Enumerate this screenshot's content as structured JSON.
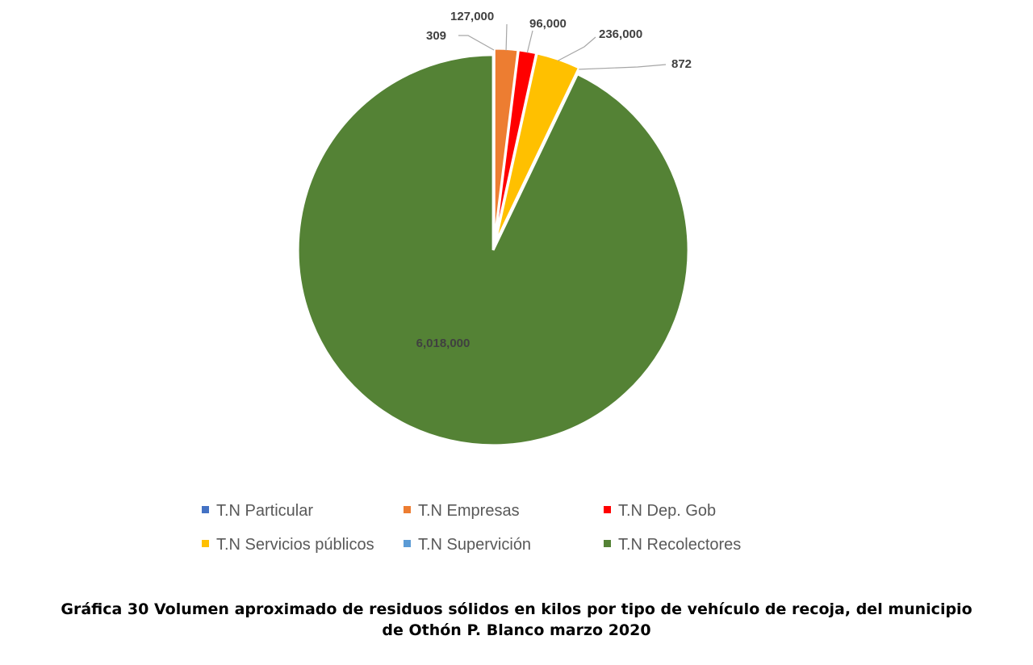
{
  "chart_data": {
    "type": "pie",
    "title": "",
    "slices": [
      {
        "label": "T.N Particular",
        "value": 309,
        "value_label": "309",
        "color": "#4472C4"
      },
      {
        "label": "T.N Empresas",
        "value": 127000,
        "value_label": "127,000",
        "color": "#ED7D31"
      },
      {
        "label": "T.N Dep. Gob",
        "value": 96000,
        "value_label": "96,000",
        "color": "#FF0000"
      },
      {
        "label": "T.N Servicios públicos",
        "value": 236000,
        "value_label": "236,000",
        "color": "#FFC000"
      },
      {
        "label": "T.N Supervición",
        "value": 872,
        "value_label": "872",
        "color": "#5B9BD5"
      },
      {
        "label": "T.N Recolectores",
        "value": 6018000,
        "value_label": "6,018,000",
        "color": "#548235"
      }
    ],
    "legend_position": "bottom"
  },
  "caption": {
    "line1": "Gráfica 30 Volumen aproximado de residuos sólidos en kilos por tipo de vehículo de recoja, del municipio",
    "line2": "de Othón P. Blanco marzo 2020"
  }
}
